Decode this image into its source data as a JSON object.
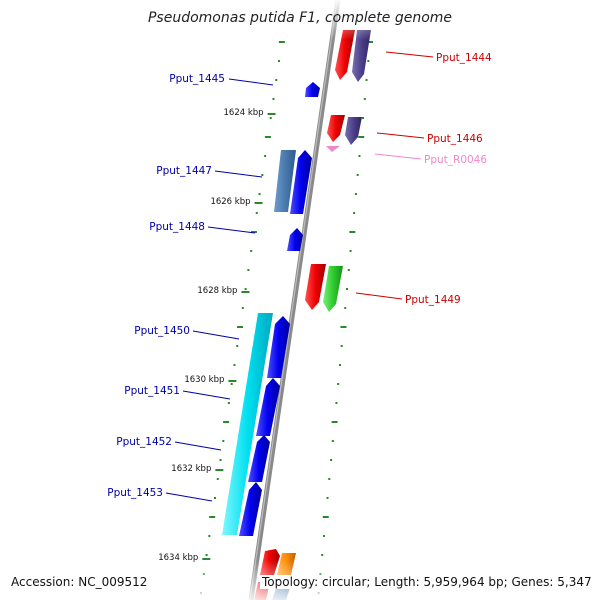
{
  "title": "Pseudomonas putida F1, complete genome",
  "accession_text": "Accession: NC_009512",
  "topology_text": "Topology: circular; Length: 5,959,964 bp; Genes: 5,347",
  "colors": {
    "backbone": "#8a8a8a",
    "tick": "#2a8a2a",
    "label_plus": "#0000aa",
    "label_minus": "#cc0000",
    "label_rna": "#ee88cc"
  },
  "scale_labels": [
    {
      "kbp": 1624,
      "text": "1624 kbp"
    },
    {
      "kbp": 1626,
      "text": "1626 kbp"
    },
    {
      "kbp": 1628,
      "text": "1628 kbp"
    },
    {
      "kbp": 1630,
      "text": "1630 kbp"
    },
    {
      "kbp": 1632,
      "text": "1632 kbp"
    },
    {
      "kbp": 1634,
      "text": "1634 kbp"
    }
  ],
  "gene_labels": [
    {
      "name": "Pput_1444",
      "strand": "minus"
    },
    {
      "name": "Pput_1445",
      "strand": "plus"
    },
    {
      "name": "Pput_1446",
      "strand": "minus"
    },
    {
      "name": "Pput_R0046",
      "strand": "rna"
    },
    {
      "name": "Pput_1447",
      "strand": "plus"
    },
    {
      "name": "Pput_1448",
      "strand": "plus"
    },
    {
      "name": "Pput_1449",
      "strand": "minus"
    },
    {
      "name": "Pput_1450",
      "strand": "plus"
    },
    {
      "name": "Pput_1451",
      "strand": "plus"
    },
    {
      "name": "Pput_1452",
      "strand": "plus"
    },
    {
      "name": "Pput_1453",
      "strand": "plus"
    }
  ]
}
